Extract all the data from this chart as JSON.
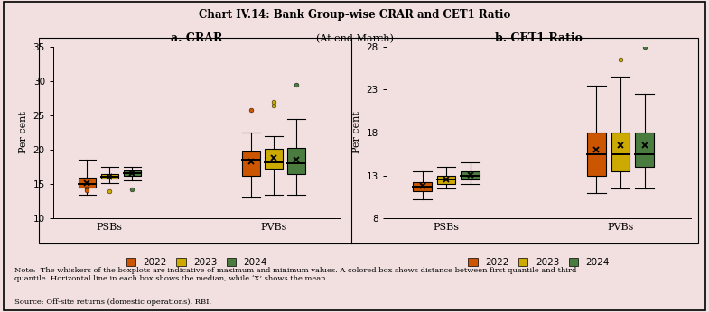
{
  "title": "Chart IV.14: Bank Group-wise CRAR and CET1 Ratio",
  "subtitle": "(At end-March)",
  "note": "Note:  The whiskers of the boxplots are indicative of maximum and minimum values. A colored box shows distance between first quantile and third\nquantile. Horizontal line in each box shows the median, while ‘X’ shows the mean.",
  "source": "Source: Off-site returns (domestic operations), RBI.",
  "background_color": "#f2e0e0",
  "panel_background": "#f2e0e0",
  "colors": {
    "2022": "#cc5500",
    "2023": "#ccaa00",
    "2024": "#4a7c3f"
  },
  "panel_a": {
    "title": "a. CRAR",
    "ylabel": "Per cent",
    "ylim": [
      10,
      35
    ],
    "yticks": [
      10,
      15,
      20,
      25,
      30,
      35
    ],
    "groups": [
      "PSBs",
      "PVBs"
    ],
    "PSBs": {
      "2022": {
        "q1": 14.5,
        "median": 15.0,
        "q3": 16.0,
        "mean": 15.2,
        "whislo": 13.5,
        "whishi": 18.5,
        "fliers": [
          14.3,
          14.1
        ]
      },
      "2023": {
        "q1": 15.8,
        "median": 16.1,
        "q3": 16.5,
        "mean": 16.1,
        "whislo": 15.2,
        "whishi": 17.5,
        "fliers": [
          14.0
        ]
      },
      "2024": {
        "q1": 16.2,
        "median": 16.6,
        "q3": 17.0,
        "mean": 16.6,
        "whislo": 15.5,
        "whishi": 17.5,
        "fliers": [
          14.2
        ]
      }
    },
    "PVBs": {
      "2022": {
        "q1": 16.2,
        "median": 18.5,
        "q3": 19.8,
        "mean": 18.3,
        "whislo": 13.0,
        "whishi": 22.5,
        "fliers": [
          25.8
        ]
      },
      "2023": {
        "q1": 17.2,
        "median": 18.2,
        "q3": 20.1,
        "mean": 18.8,
        "whislo": 13.5,
        "whishi": 22.0,
        "fliers": [
          26.5,
          27.0
        ]
      },
      "2024": {
        "q1": 16.5,
        "median": 18.0,
        "q3": 20.3,
        "mean": 18.5,
        "whislo": 13.5,
        "whishi": 24.5,
        "fliers": [
          29.5
        ]
      }
    }
  },
  "panel_b": {
    "title": "b. CET1 Ratio",
    "ylabel": "Per cent",
    "ylim": [
      8,
      28
    ],
    "yticks": [
      8,
      13,
      18,
      23,
      28
    ],
    "groups": [
      "PSBs",
      "PVBs"
    ],
    "PSBs": {
      "2022": {
        "q1": 11.2,
        "median": 11.7,
        "q3": 12.2,
        "mean": 11.8,
        "whislo": 10.2,
        "whishi": 13.5,
        "fliers": []
      },
      "2023": {
        "q1": 12.0,
        "median": 12.5,
        "q3": 13.0,
        "mean": 12.5,
        "whislo": 11.5,
        "whishi": 14.0,
        "fliers": []
      },
      "2024": {
        "q1": 12.5,
        "median": 13.0,
        "q3": 13.5,
        "mean": 13.1,
        "whislo": 12.0,
        "whishi": 14.5,
        "fliers": []
      }
    },
    "PVBs": {
      "2022": {
        "q1": 13.0,
        "median": 15.5,
        "q3": 18.0,
        "mean": 16.0,
        "whislo": 11.0,
        "whishi": 23.5,
        "fliers": []
      },
      "2023": {
        "q1": 13.5,
        "median": 15.5,
        "q3": 18.0,
        "mean": 16.5,
        "whislo": 11.5,
        "whishi": 24.5,
        "fliers": [
          26.5
        ]
      },
      "2024": {
        "q1": 14.0,
        "median": 15.5,
        "q3": 18.0,
        "mean": 16.5,
        "whislo": 11.5,
        "whishi": 22.5,
        "fliers": [
          28.0
        ]
      }
    }
  }
}
